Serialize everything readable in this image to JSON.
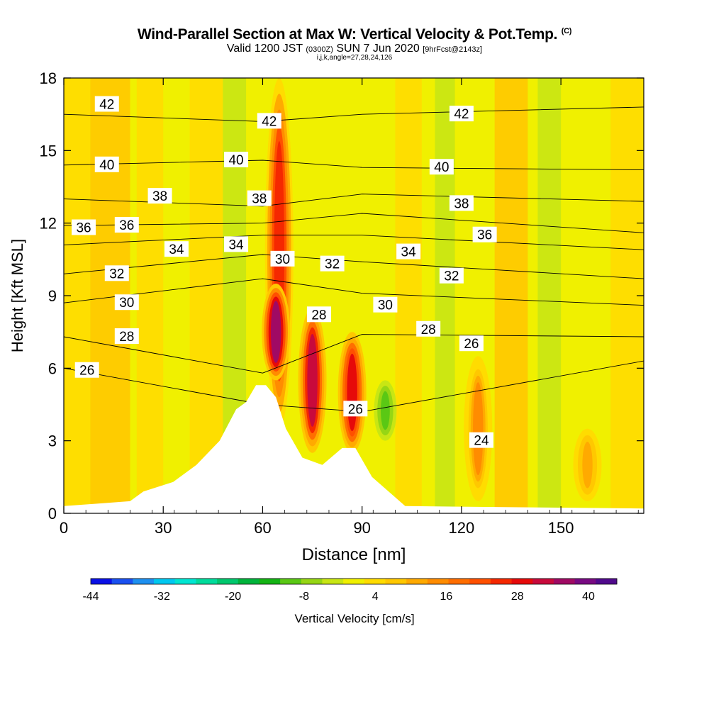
{
  "title": "Wind-Parallel Section at Max W: Vertical Velocity & Pot.Temp.",
  "copyright_mark": "(C)",
  "subtitle_main": "Valid 1200 JST",
  "subtitle_utc": "(0300Z)",
  "subtitle_date": "SUN 7 Jun 2020",
  "subtitle_fcst": "[9hrFcst@2143z]",
  "subtitle_indices": "i,j,k,angle=27,28,24,126",
  "chart_data": {
    "type": "heatmap",
    "title": "Wind-Parallel Section at Max W: Vertical Velocity & Pot.Temp.",
    "xlabel": "Distance [nm]",
    "ylabel": "Height [Kft MSL]",
    "xlim": [
      0,
      175
    ],
    "ylim": [
      0,
      18
    ],
    "x_ticks": [
      0,
      30,
      60,
      90,
      120,
      150
    ],
    "y_ticks": [
      0,
      3,
      6,
      9,
      12,
      15,
      18
    ],
    "colorbar": {
      "label": "Vertical Velocity [cm/s]",
      "tick_labels": [
        -44,
        -32,
        -20,
        -8,
        4,
        16,
        28,
        40
      ],
      "colors": [
        "#0a10e6",
        "#1a50f0",
        "#1e90f0",
        "#00c8f0",
        "#00e6d2",
        "#00dc9c",
        "#00c86e",
        "#00b43c",
        "#14b414",
        "#5ac814",
        "#96d614",
        "#c8e614",
        "#f0f000",
        "#ffdc00",
        "#ffc800",
        "#ffaa00",
        "#ff8c00",
        "#ff6e00",
        "#ff5000",
        "#f52800",
        "#e60a0a",
        "#c80a3c",
        "#a00a64",
        "#780a82",
        "#500a8c"
      ]
    },
    "vertical_velocity_columns": [
      {
        "x": 65,
        "y_bottom": 3.5,
        "y_top": 18,
        "peak_cm_s": 28
      },
      {
        "x": 64,
        "y_bottom": 5.5,
        "y_top": 9.5,
        "peak_cm_s": 40
      },
      {
        "x": 75,
        "y_bottom": 2.5,
        "y_top": 8.5,
        "peak_cm_s": 34
      },
      {
        "x": 87,
        "y_bottom": 2.5,
        "y_top": 7.5,
        "peak_cm_s": 30
      },
      {
        "x": 97,
        "y_bottom": 3.0,
        "y_top": 5.5,
        "peak_cm_s": -12
      },
      {
        "x": 125,
        "y_bottom": 0.5,
        "y_top": 6.5,
        "peak_cm_s": 14
      },
      {
        "x": 158,
        "y_bottom": 0.5,
        "y_top": 3.5,
        "peak_cm_s": 12
      }
    ],
    "terrain": [
      {
        "x": 0,
        "h": 0.3
      },
      {
        "x": 20,
        "h": 0.5
      },
      {
        "x": 24,
        "h": 0.9
      },
      {
        "x": 33,
        "h": 1.3
      },
      {
        "x": 40,
        "h": 2.0
      },
      {
        "x": 47,
        "h": 3.0
      },
      {
        "x": 52,
        "h": 4.3
      },
      {
        "x": 55,
        "h": 4.6
      },
      {
        "x": 58,
        "h": 5.3
      },
      {
        "x": 61,
        "h": 5.3
      },
      {
        "x": 64,
        "h": 4.8
      },
      {
        "x": 67,
        "h": 3.5
      },
      {
        "x": 72,
        "h": 2.3
      },
      {
        "x": 78,
        "h": 2.0
      },
      {
        "x": 84,
        "h": 2.7
      },
      {
        "x": 88,
        "h": 2.7
      },
      {
        "x": 93,
        "h": 1.5
      },
      {
        "x": 98,
        "h": 0.9
      },
      {
        "x": 103,
        "h": 0.3
      },
      {
        "x": 175,
        "h": 0.2
      }
    ],
    "theta_contours": [
      {
        "value": 26,
        "heights_at_x0_60_90_150": [
          6.0,
          4.5,
          4.2,
          6.3
        ]
      },
      {
        "value": 28,
        "heights_at_x0_60_90_150": [
          7.3,
          5.8,
          7.4,
          7.3
        ]
      },
      {
        "value": 30,
        "heights_at_x0_60_90_150": [
          8.7,
          9.7,
          9.1,
          8.6
        ]
      },
      {
        "value": 32,
        "heights_at_x0_60_90_150": [
          9.9,
          10.7,
          10.4,
          9.7
        ]
      },
      {
        "value": 34,
        "heights_at_x0_60_90_150": [
          11.1,
          11.5,
          11.5,
          10.9
        ]
      },
      {
        "value": 36,
        "heights_at_x0_60_90_150": [
          11.9,
          12.0,
          12.4,
          11.6
        ]
      },
      {
        "value": 38,
        "heights_at_x0_60_90_150": [
          13.0,
          12.7,
          13.2,
          12.9
        ]
      },
      {
        "value": 40,
        "heights_at_x0_60_90_150": [
          14.4,
          14.6,
          14.3,
          14.2
        ]
      },
      {
        "value": 42,
        "heights_at_x0_60_90_150": [
          16.5,
          16.2,
          16.5,
          16.8
        ]
      }
    ],
    "contour_labels": [
      {
        "text": "42",
        "x": 13,
        "y": 16.9
      },
      {
        "text": "42",
        "x": 62,
        "y": 16.2
      },
      {
        "text": "42",
        "x": 120,
        "y": 16.5
      },
      {
        "text": "40",
        "x": 13,
        "y": 14.4
      },
      {
        "text": "40",
        "x": 52,
        "y": 14.6
      },
      {
        "text": "40",
        "x": 114,
        "y": 14.3
      },
      {
        "text": "38",
        "x": 29,
        "y": 13.1
      },
      {
        "text": "38",
        "x": 59,
        "y": 13.0
      },
      {
        "text": "38",
        "x": 120,
        "y": 12.8
      },
      {
        "text": "36",
        "x": 6,
        "y": 11.8
      },
      {
        "text": "36",
        "x": 19,
        "y": 11.9
      },
      {
        "text": "36",
        "x": 127,
        "y": 11.5
      },
      {
        "text": "34",
        "x": 34,
        "y": 10.9
      },
      {
        "text": "34",
        "x": 52,
        "y": 11.1
      },
      {
        "text": "34",
        "x": 104,
        "y": 10.8
      },
      {
        "text": "32",
        "x": 16,
        "y": 9.9
      },
      {
        "text": "32",
        "x": 81,
        "y": 10.3
      },
      {
        "text": "32",
        "x": 117,
        "y": 9.8
      },
      {
        "text": "30",
        "x": 66,
        "y": 10.5
      },
      {
        "text": "30",
        "x": 19,
        "y": 8.7
      },
      {
        "text": "30",
        "x": 97,
        "y": 8.6
      },
      {
        "text": "28",
        "x": 19,
        "y": 7.3
      },
      {
        "text": "28",
        "x": 77,
        "y": 8.2
      },
      {
        "text": "28",
        "x": 110,
        "y": 7.6
      },
      {
        "text": "26",
        "x": 7,
        "y": 5.9
      },
      {
        "text": "26",
        "x": 123,
        "y": 7.0
      },
      {
        "text": "26",
        "x": 88,
        "y": 4.3
      },
      {
        "text": "24",
        "x": 126,
        "y": 3.0
      }
    ]
  }
}
